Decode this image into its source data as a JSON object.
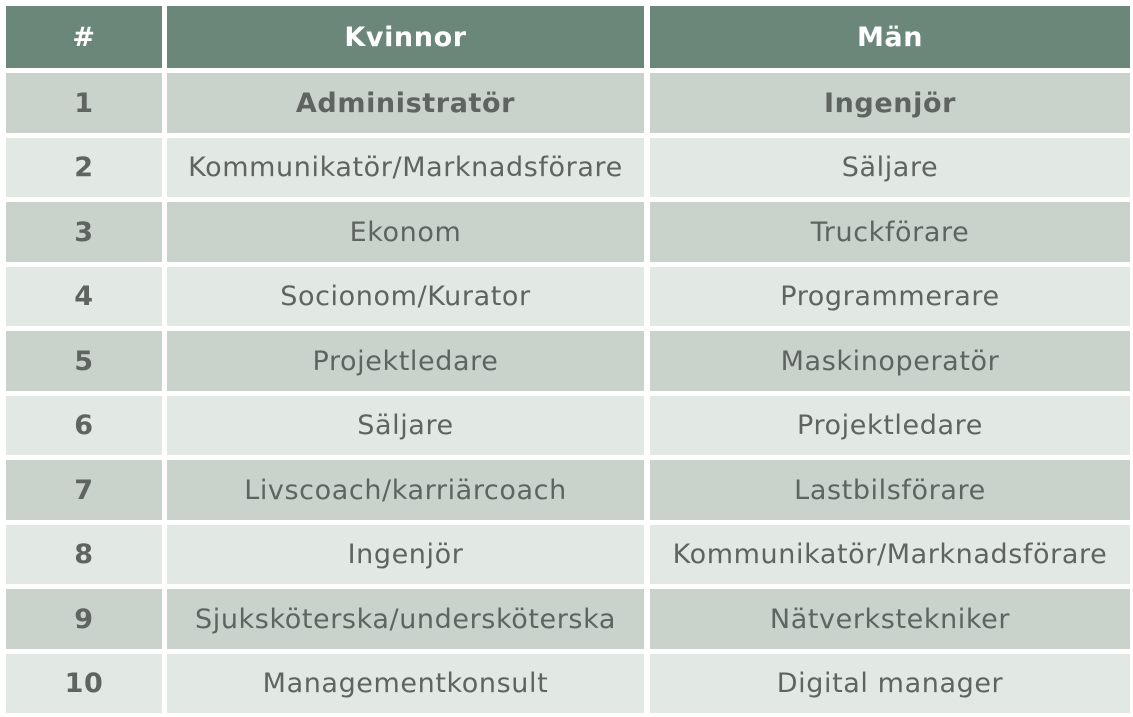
{
  "header": {
    "rank": "#",
    "women": "Kvinnor",
    "men": "Män"
  },
  "rows": [
    {
      "rank": "1",
      "women": "Administratör",
      "men": "Ingenjör"
    },
    {
      "rank": "2",
      "women": "Kommunikatör/Marknadsförare",
      "men": "Säljare"
    },
    {
      "rank": "3",
      "women": "Ekonom",
      "men": "Truckförare"
    },
    {
      "rank": "4",
      "women": "Socionom/Kurator",
      "men": "Programmerare"
    },
    {
      "rank": "5",
      "women": "Projektledare",
      "men": "Maskinoperatör"
    },
    {
      "rank": "6",
      "women": "Säljare",
      "men": "Projektledare"
    },
    {
      "rank": "7",
      "women": "Livscoach/karriärcoach",
      "men": "Lastbilsförare"
    },
    {
      "rank": "8",
      "women": "Ingenjör",
      "men": "Kommunikatör/Marknadsförare"
    },
    {
      "rank": "9",
      "women": "Sjuksköterska/undersköterska",
      "men": "Nätverkstekniker"
    },
    {
      "rank": "10",
      "women": "Managementkonsult",
      "men": "Digital manager"
    }
  ],
  "colors": {
    "header_bg": "#6b877a",
    "row_dark_bg": "#c9d3cc",
    "row_light_bg": "#e2e8e4",
    "text": "#5f6461"
  }
}
